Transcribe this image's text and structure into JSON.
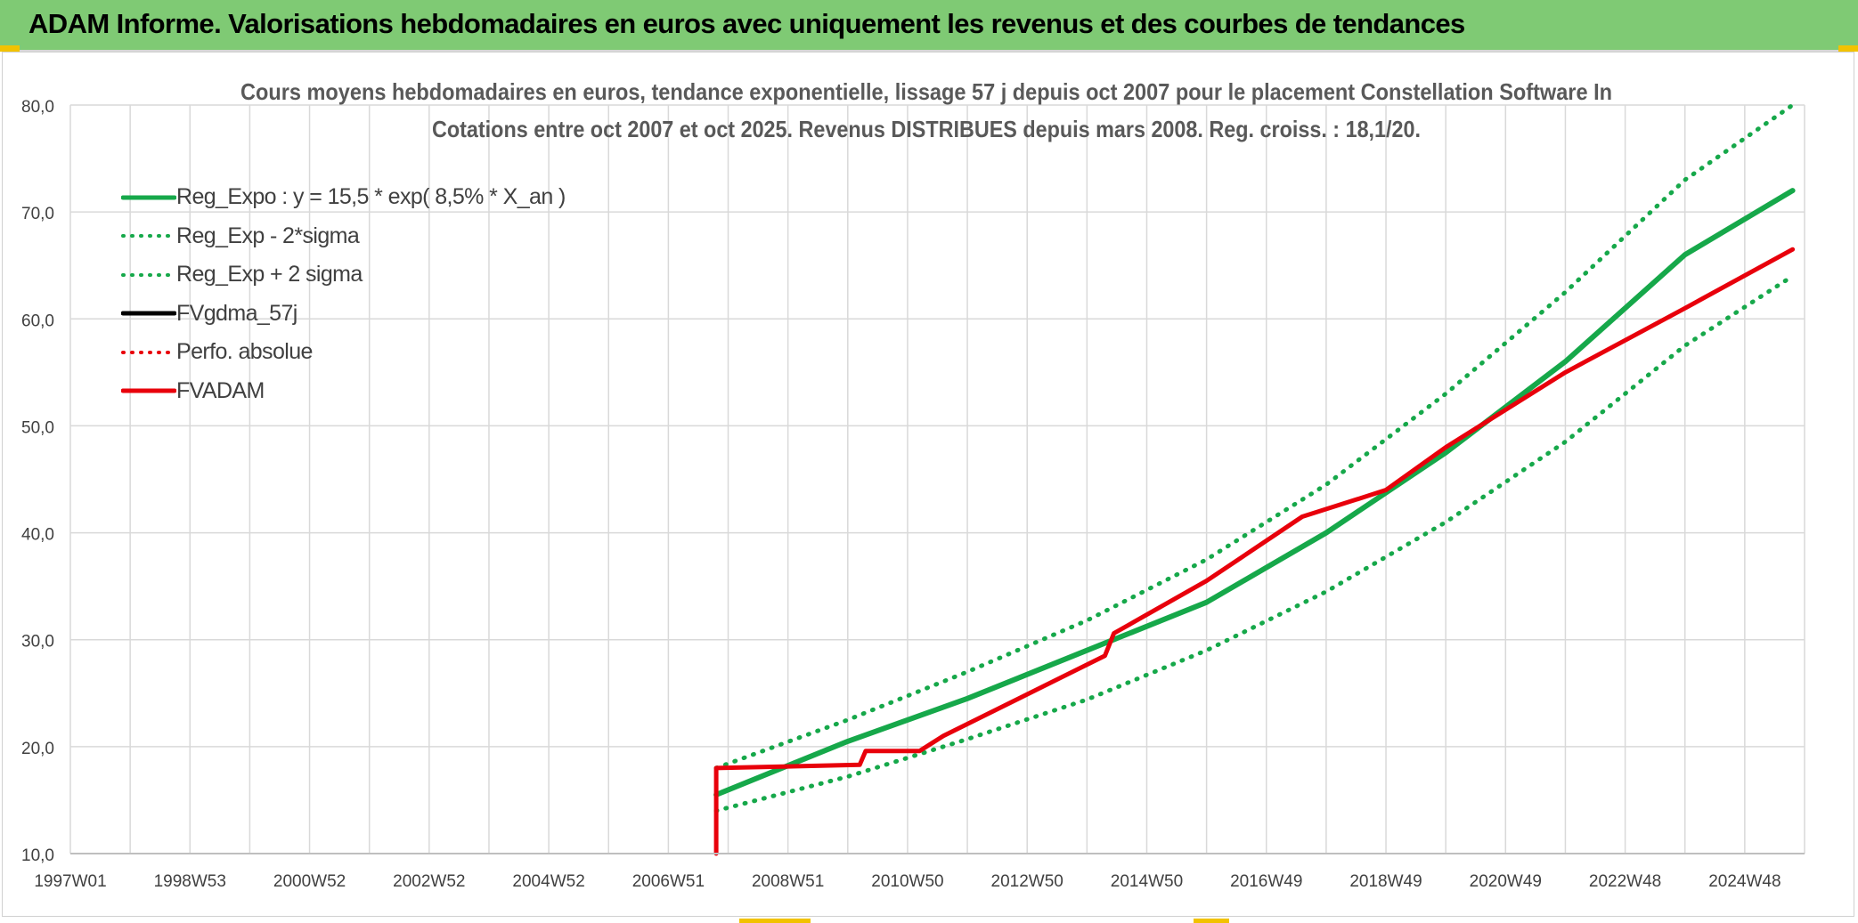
{
  "header": {
    "title": "ADAM Informe. Valorisations hebdomadaires en euros avec uniquement les revenus et des courbes de tendances"
  },
  "colors": {
    "banner": "#7fca74",
    "green": "#16a84a",
    "red": "#e8000b",
    "black": "#000000",
    "grid": "#d9d9d9",
    "text": "#404040",
    "accent_yellow": "#f2c200"
  },
  "chart_data": {
    "type": "line",
    "title_lines": [
      "Cours moyens hebdomadaires en euros, tendance exponentielle, lissage 57 j depuis oct 2007 pour le placement Constellation Software In",
      "Cotations entre oct 2007 et oct 2025. Revenus DISTRIBUES depuis mars 2008. Reg. croiss. : 18,1/20."
    ],
    "x_tick_labels": [
      "1997W01",
      "1998W53",
      "2000W52",
      "2002W52",
      "2004W52",
      "2006W51",
      "2008W51",
      "2010W50",
      "2012W50",
      "2014W50",
      "2016W49",
      "2018W49",
      "2020W49",
      "2022W48",
      "2024W48"
    ],
    "xlim": [
      1997.0,
      2026.0
    ],
    "ylim": [
      10,
      80
    ],
    "y_ticks": [
      10,
      20,
      30,
      40,
      50,
      60,
      70,
      80
    ],
    "y_tick_labels": [
      "10,0",
      "20,0",
      "30,0",
      "40,0",
      "50,0",
      "60,0",
      "70,0",
      "80,0"
    ],
    "grid": true,
    "legend_position": "upper-left inside plot",
    "legend": [
      {
        "label": "Reg_Expo : y = 15,5 * exp( 8,5% *  X_an )",
        "color": "#16a84a",
        "style": "solid"
      },
      {
        "label": "Reg_Exp - 2*sigma",
        "color": "#16a84a",
        "style": "dotted"
      },
      {
        "label": "Reg_Exp + 2 sigma",
        "color": "#16a84a",
        "style": "dotted"
      },
      {
        "label": "FVgdma_57j",
        "color": "#000000",
        "style": "solid"
      },
      {
        "label": "Perfo. absolue",
        "color": "#e8000b",
        "style": "dotted"
      },
      {
        "label": "FVADAM",
        "color": "#e8000b",
        "style": "solid"
      }
    ],
    "series": [
      {
        "name": "Reg_Expo : y = 15,5 * exp( 8,5% *  X_an )",
        "style": "solid",
        "color": "#16a84a",
        "x": [
          2007.8,
          2010.0,
          2012.0,
          2014.0,
          2016.0,
          2018.0,
          2020.0,
          2022.0,
          2024.0,
          2025.8
        ],
        "y": [
          15.5,
          20.5,
          24.5,
          29.0,
          33.5,
          40.0,
          47.5,
          56.0,
          66.0,
          72.0
        ]
      },
      {
        "name": "Reg_Exp - 2*sigma",
        "style": "dotted",
        "color": "#16a84a",
        "x": [
          2007.8,
          2010.0,
          2012.0,
          2014.0,
          2016.0,
          2018.0,
          2020.0,
          2022.0,
          2024.0,
          2025.8
        ],
        "y": [
          14.0,
          17.2,
          20.7,
          24.4,
          29.0,
          34.5,
          41.0,
          48.5,
          57.5,
          64.0
        ]
      },
      {
        "name": "Reg_Exp + 2 sigma",
        "style": "dotted",
        "color": "#16a84a",
        "x": [
          2007.8,
          2010.0,
          2012.0,
          2014.0,
          2016.0,
          2018.0,
          2020.0,
          2022.0,
          2024.0,
          2025.8
        ],
        "y": [
          18.0,
          22.5,
          27.0,
          31.8,
          37.5,
          44.5,
          53.0,
          62.5,
          73.0,
          80.0
        ]
      },
      {
        "name": "FVgdma_57j",
        "style": "solid",
        "color": "#000000",
        "x": [
          2007.8,
          2007.8,
          2010.2,
          2010.3,
          2011.2,
          2011.6,
          2014.3,
          2014.45,
          2016.0,
          2017.6,
          2018.5,
          2019.0,
          2020.0,
          2022.0,
          2024.0,
          2025.8
        ],
        "y": [
          10.0,
          18.0,
          18.3,
          19.6,
          19.6,
          21.0,
          28.5,
          30.6,
          35.5,
          41.5,
          43.1,
          44.0,
          48.0,
          55.0,
          61.0,
          66.5
        ]
      },
      {
        "name": "Perfo. absolue",
        "style": "dotted",
        "color": "#e8000b",
        "x": [
          2007.8,
          2007.8,
          2010.2,
          2010.3,
          2011.2,
          2011.6,
          2014.3,
          2014.45,
          2016.0,
          2017.6,
          2018.5,
          2019.0,
          2020.0,
          2022.0,
          2024.0,
          2025.8
        ],
        "y": [
          10.0,
          18.0,
          18.3,
          19.6,
          19.6,
          21.0,
          28.5,
          30.6,
          35.5,
          41.5,
          43.1,
          44.0,
          48.0,
          55.0,
          61.0,
          66.5
        ]
      },
      {
        "name": "FVADAM",
        "style": "solid",
        "color": "#e8000b",
        "x": [
          2007.8,
          2007.8,
          2010.2,
          2010.3,
          2011.2,
          2011.6,
          2014.3,
          2014.45,
          2016.0,
          2017.6,
          2018.5,
          2019.0,
          2020.0,
          2022.0,
          2024.0,
          2025.8
        ],
        "y": [
          10.0,
          18.0,
          18.3,
          19.6,
          19.6,
          21.0,
          28.5,
          30.6,
          35.5,
          41.5,
          43.1,
          44.0,
          48.0,
          55.0,
          61.0,
          66.5
        ]
      }
    ]
  }
}
